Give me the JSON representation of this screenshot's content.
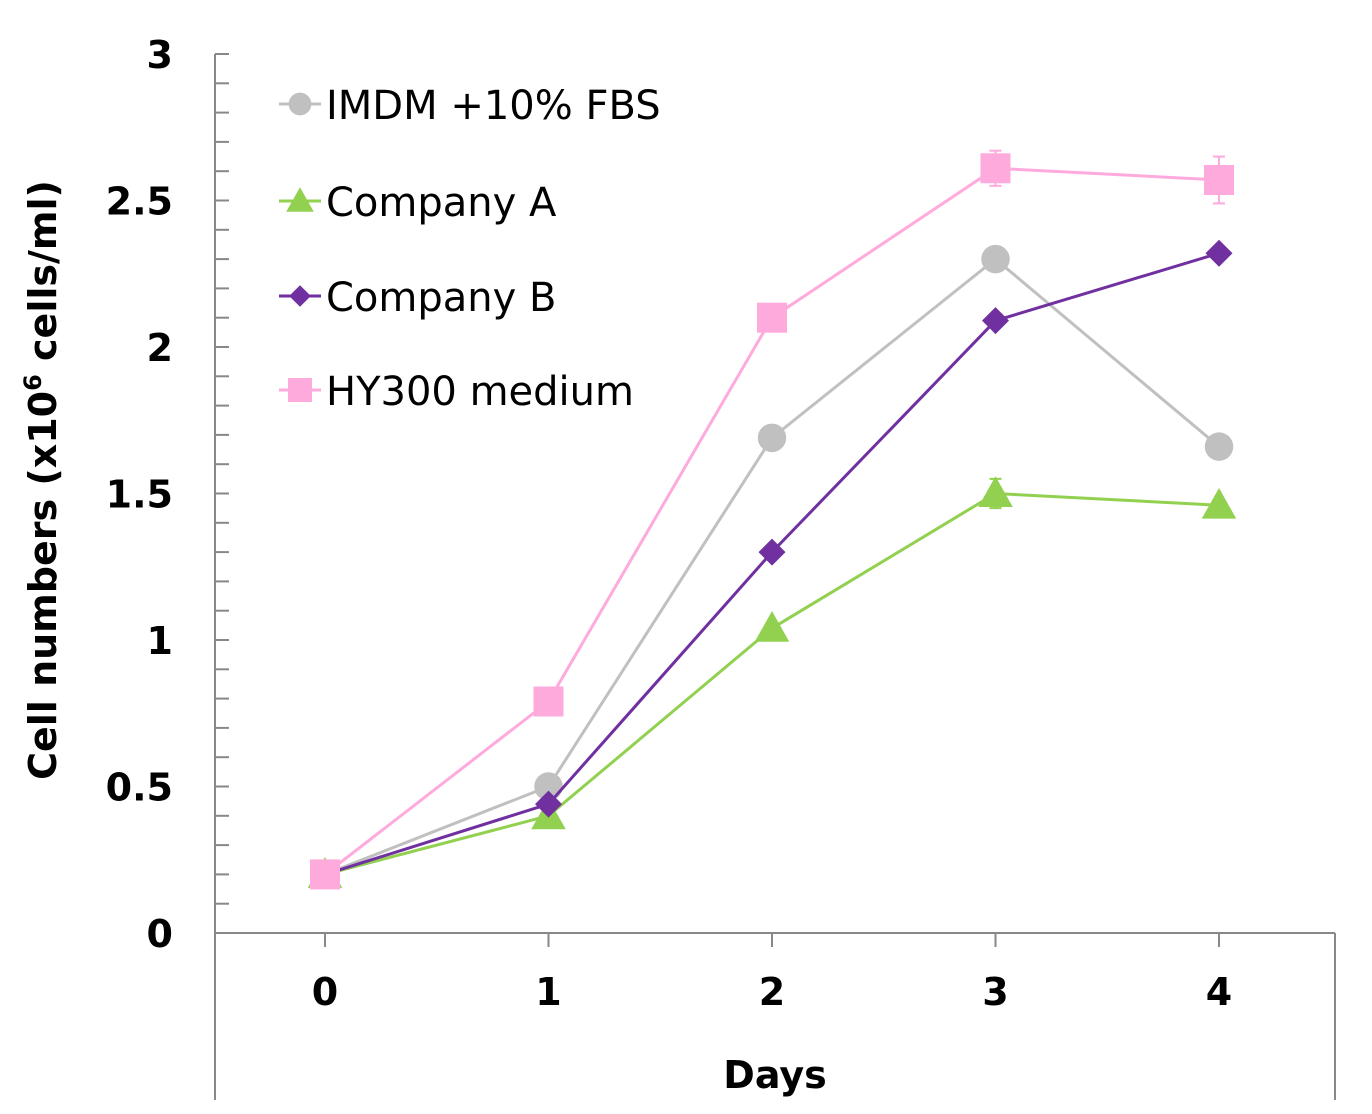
{
  "chart_data": {
    "type": "line",
    "xlabel": "Days",
    "ylabel": "Cell numbers (x10",
    "ylabel_sup": "6",
    "ylabel_tail": " cells/ml)",
    "x": [
      0,
      1,
      2,
      3,
      4
    ],
    "x_tick_labels": [
      "0",
      "1",
      "2",
      "3",
      "4"
    ],
    "y_tick_labels": [
      "0",
      "0.5",
      "1",
      "1.5",
      "2",
      "2.5",
      "3"
    ],
    "y_ticks": [
      0,
      0.5,
      1,
      1.5,
      2,
      2.5,
      3
    ],
    "ylim": [
      0,
      3
    ],
    "grid": false,
    "legend_position": "top-left",
    "series": [
      {
        "name": "IMDM +10% FBS",
        "marker": "circle",
        "color": "#c0c0c0",
        "values": [
          0.2,
          0.5,
          1.69,
          2.3,
          1.66
        ],
        "errors": [
          0,
          0,
          0,
          0.04,
          0
        ]
      },
      {
        "name": "Company A",
        "marker": "triangle",
        "color": "#92d050",
        "values": [
          0.2,
          0.4,
          1.04,
          1.5,
          1.46
        ],
        "errors": [
          0,
          0,
          0,
          0.05,
          0
        ]
      },
      {
        "name": "Company B",
        "marker": "diamond",
        "color": "#7030a0",
        "values": [
          0.2,
          0.44,
          1.3,
          2.09,
          2.32
        ],
        "errors": [
          0,
          0,
          0,
          0,
          0
        ]
      },
      {
        "name": "HY300 medium",
        "marker": "square",
        "color": "#ffaadd",
        "values": [
          0.2,
          0.79,
          2.1,
          2.61,
          2.57
        ],
        "errors": [
          0,
          0,
          0,
          0.06,
          0.08
        ]
      }
    ]
  }
}
